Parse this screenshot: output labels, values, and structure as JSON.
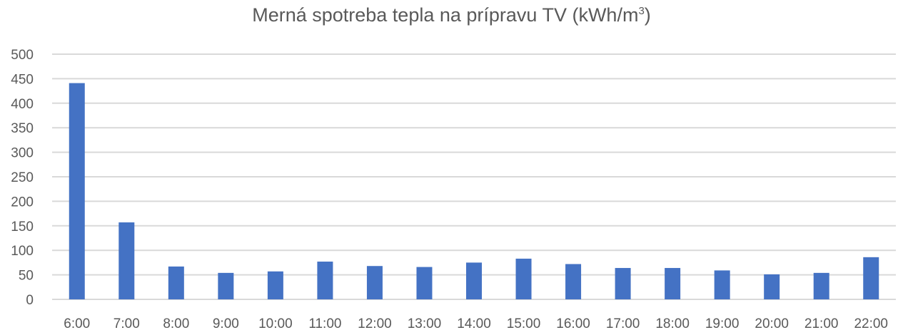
{
  "chart_data": {
    "type": "bar",
    "title": "Merná spotreba tepla na prípravu TV (kWh/m",
    "title_superscript": "3",
    "title_suffix": ")",
    "xlabel": "",
    "ylabel": "",
    "categories": [
      "6:00",
      "7:00",
      "8:00",
      "9:00",
      "10:00",
      "11:00",
      "12:00",
      "13:00",
      "14:00",
      "15:00",
      "16:00",
      "17:00",
      "18:00",
      "19:00",
      "20:00",
      "21:00",
      "22:00"
    ],
    "values": [
      441,
      157,
      67,
      54,
      57,
      77,
      68,
      66,
      75,
      83,
      72,
      64,
      64,
      59,
      51,
      54,
      86
    ],
    "ylim": [
      0,
      500
    ],
    "yticks": [
      "0",
      "50",
      "100",
      "150",
      "200",
      "250",
      "300",
      "350",
      "400",
      "450",
      "500"
    ],
    "grid": true,
    "legend": "none",
    "colors": {
      "bar": "#4472C4",
      "grid": "#d9d9d9",
      "text": "#595959"
    }
  }
}
